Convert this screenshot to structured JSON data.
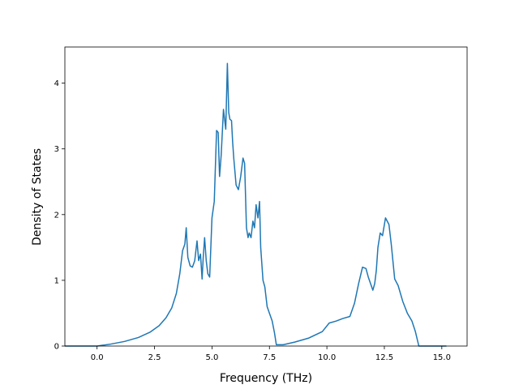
{
  "chart_data": {
    "type": "line",
    "xlabel": "Frequency (THz)",
    "ylabel": "Density of States",
    "xlim": [
      -1.4,
      16.1
    ],
    "ylim": [
      0,
      4.55
    ],
    "x_ticks": [
      0.0,
      2.5,
      5.0,
      7.5,
      10.0,
      12.5,
      15.0
    ],
    "x_tick_labels": [
      "0.0",
      "2.5",
      "5.0",
      "7.5",
      "10.0",
      "12.5",
      "15.0"
    ],
    "y_ticks": [
      0,
      1,
      2,
      3,
      4
    ],
    "y_tick_labels": [
      "0",
      "1",
      "2",
      "3",
      "4"
    ],
    "grid": false,
    "line_color": "#1f77b4",
    "series": [
      {
        "x": [
          -1.4,
          0.0,
          0.6,
          1.2,
          1.8,
          2.3,
          2.7,
          3.0,
          3.25,
          3.45,
          3.6,
          3.72,
          3.82,
          3.88,
          3.95,
          4.05,
          4.15,
          4.25,
          4.35,
          4.42,
          4.5,
          4.57,
          4.62,
          4.68,
          4.75,
          4.82,
          4.9,
          5.0,
          5.1,
          5.2,
          5.27,
          5.33,
          5.4,
          5.5,
          5.6,
          5.67,
          5.73,
          5.78,
          5.85,
          5.9,
          5.95,
          6.05,
          6.15,
          6.25,
          6.35,
          6.42,
          6.5,
          6.57,
          6.62,
          6.7,
          6.78,
          6.85,
          6.92,
          7.0,
          7.07,
          7.12,
          7.18,
          7.22,
          7.3,
          7.4,
          7.5,
          7.55,
          7.62,
          7.72,
          7.8,
          7.9,
          8.05,
          8.1,
          8.6,
          9.2,
          9.8,
          10.1,
          10.4,
          10.7,
          11.0,
          11.2,
          11.38,
          11.55,
          11.7,
          11.8,
          11.9,
          12.0,
          12.08,
          12.15,
          12.22,
          12.32,
          12.42,
          12.55,
          12.7,
          12.8,
          12.95,
          13.1,
          13.3,
          13.5,
          13.7,
          13.85,
          14.0,
          14.3,
          15.2
        ],
        "y": [
          0.0,
          0.0,
          0.03,
          0.07,
          0.13,
          0.21,
          0.31,
          0.43,
          0.58,
          0.8,
          1.1,
          1.45,
          1.55,
          1.8,
          1.35,
          1.22,
          1.2,
          1.3,
          1.6,
          1.3,
          1.4,
          1.02,
          1.35,
          1.65,
          1.3,
          1.1,
          1.05,
          1.95,
          2.2,
          3.28,
          3.25,
          2.58,
          2.9,
          3.6,
          3.3,
          4.3,
          3.55,
          3.45,
          3.43,
          3.1,
          2.85,
          2.45,
          2.38,
          2.58,
          2.86,
          2.78,
          1.8,
          1.65,
          1.72,
          1.65,
          1.9,
          1.8,
          2.15,
          1.95,
          2.2,
          1.5,
          1.2,
          1.0,
          0.9,
          0.6,
          0.5,
          0.45,
          0.38,
          0.2,
          0.02,
          0.02,
          0.02,
          0.02,
          0.06,
          0.12,
          0.22,
          0.35,
          0.38,
          0.42,
          0.45,
          0.65,
          0.95,
          1.2,
          1.18,
          1.05,
          0.95,
          0.85,
          0.95,
          1.15,
          1.5,
          1.72,
          1.68,
          1.95,
          1.85,
          1.55,
          1.02,
          0.92,
          0.68,
          0.5,
          0.38,
          0.22,
          0.0,
          0.0,
          0.0
        ]
      }
    ]
  }
}
